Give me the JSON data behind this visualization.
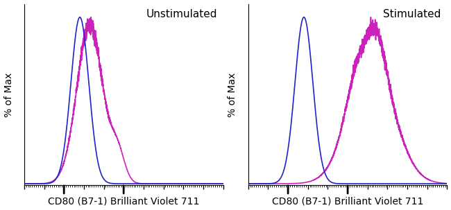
{
  "panel1_title": "Unstimulated",
  "panel2_title": "Stimulated",
  "xlabel": "CD80 (B7-1) Brilliant Violet 711",
  "ylabel": "% of Max",
  "blue_color": "#2222cc",
  "magenta_color": "#cc22bb",
  "background_color": "#ffffff",
  "line_width": 1.2,
  "figsize": [
    6.5,
    3.03
  ],
  "dpi": 100,
  "xlim": [
    0.0,
    1.0
  ],
  "ylim": [
    -0.01,
    1.08
  ]
}
